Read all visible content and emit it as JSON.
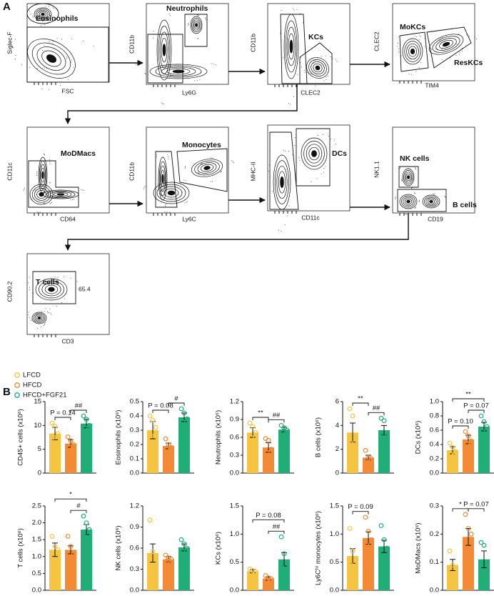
{
  "panel_a": {
    "label": "A",
    "plots": [
      {
        "x_label": "FSC",
        "y_label": "Siglec-F",
        "gates": [
          "Eosinophils"
        ]
      },
      {
        "x_label": "Ly6G",
        "y_label": "CD11b",
        "gates": [
          "Neutrophils"
        ]
      },
      {
        "x_label": "CLEC2",
        "y_label": "CD11b",
        "gates": [
          "KCs"
        ]
      },
      {
        "x_label": "TIM4",
        "y_label": "CLEC2",
        "gates": [
          "MoKCs",
          "ResKCs"
        ]
      },
      {
        "x_label": "CD64",
        "y_label": "CD11c",
        "gates": [
          "MoDMacs"
        ]
      },
      {
        "x_label": "Ly6C",
        "y_label": "CD11b",
        "gates": [
          "Monocytes"
        ]
      },
      {
        "x_label": "CD11c",
        "y_label": "MHC-II",
        "gates": [
          "DCs"
        ]
      },
      {
        "x_label": "CD19",
        "y_label": "NK1.1",
        "gates": [
          "NK cells",
          "B cells"
        ]
      },
      {
        "x_label": "CD3",
        "y_label": "CD90.2",
        "gates": [
          "T cells",
          "65.4"
        ]
      }
    ]
  },
  "panel_b": {
    "label": "B"
  },
  "chart_data": [
    {
      "type": "bar",
      "y_label": "CD45+ cells (x10⁶)",
      "ylim": [
        0,
        15
      ],
      "yticks": [
        0,
        5,
        10,
        15
      ],
      "series": [
        {
          "name": "LFCD",
          "color": "#f5c542",
          "values": [
            8.3
          ],
          "errors": [
            1.3
          ],
          "points": [
            [
              10.5,
              9.8,
              8.3,
              7.5,
              5.3
            ]
          ]
        },
        {
          "name": "HFCD",
          "color": "#f28a36",
          "values": [
            6.2
          ],
          "errors": [
            0.8
          ],
          "points": [
            [
              7.6,
              6.8,
              6.0,
              5.5,
              5.0
            ]
          ]
        },
        {
          "name": "HFCD+FGF21",
          "color": "#1fae78",
          "values": [
            10.4
          ],
          "errors": [
            0.9
          ],
          "points": [
            [
              12.0,
              11.3,
              10.0,
              9.5,
              9.0
            ]
          ]
        }
      ],
      "annotations": [
        {
          "text": "P = 0.14",
          "between": [
            0,
            1
          ]
        },
        {
          "text": "##",
          "between": [
            1,
            2
          ]
        }
      ]
    },
    {
      "type": "bar",
      "y_label": "Eosinophils (x10⁶)",
      "ylim": [
        0,
        0.5
      ],
      "yticks": [
        {
          "value": 0,
          "label": "0.0"
        },
        0.1,
        0.2,
        0.3,
        0.4,
        0.5
      ],
      "series": [
        {
          "color": "#f5c542",
          "values": [
            0.3
          ],
          "errors": [
            0.06
          ],
          "points": [
            [
              0.4,
              0.37,
              0.32,
              0.26,
              0.1
            ]
          ]
        },
        {
          "color": "#f28a36",
          "values": [
            0.19
          ],
          "errors": [
            0.02
          ],
          "points": [
            [
              0.24,
              0.2,
              0.18,
              0.17,
              0.16
            ]
          ]
        },
        {
          "color": "#1fae78",
          "values": [
            0.39
          ],
          "errors": [
            0.03
          ],
          "points": [
            [
              0.45,
              0.42,
              0.38,
              0.36,
              0.34
            ]
          ]
        }
      ],
      "annotations": [
        {
          "text": "P = 0.08",
          "between": [
            0,
            1
          ]
        },
        {
          "text": "#",
          "between": [
            1,
            2
          ]
        }
      ]
    },
    {
      "type": "bar",
      "y_label": "Neutrophils (x10⁶)",
      "ylim": [
        0,
        1.2
      ],
      "yticks": [
        {
          "value": 0,
          "label": "0.0"
        },
        0.3,
        0.6,
        0.9,
        1.2
      ],
      "series": [
        {
          "color": "#f5c542",
          "values": [
            0.68
          ],
          "errors": [
            0.08
          ],
          "points": [
            [
              0.84,
              0.78,
              0.68,
              0.6,
              0.5
            ]
          ]
        },
        {
          "color": "#f28a36",
          "values": [
            0.43
          ],
          "errors": [
            0.08
          ],
          "points": [
            [
              0.58,
              0.55,
              0.4,
              0.35,
              0.25
            ]
          ]
        },
        {
          "color": "#1fae78",
          "values": [
            0.73
          ],
          "errors": [
            0.04
          ],
          "points": [
            [
              0.8,
              0.76,
              0.72,
              0.7,
              0.66
            ]
          ]
        }
      ],
      "annotations": [
        {
          "text": "**",
          "between": [
            0,
            1
          ]
        },
        {
          "text": "##",
          "between": [
            1,
            2
          ]
        }
      ]
    },
    {
      "type": "bar",
      "y_label": "B cells (x10⁶)",
      "ylim": [
        0,
        6
      ],
      "yticks": [
        0,
        2,
        4,
        6
      ],
      "series": [
        {
          "color": "#f5c542",
          "values": [
            3.4
          ],
          "errors": [
            0.8
          ],
          "points": [
            [
              5.4,
              4.8,
              3.0,
              2.5,
              1.4
            ]
          ]
        },
        {
          "color": "#f28a36",
          "values": [
            1.3
          ],
          "errors": [
            0.2
          ],
          "points": [
            [
              1.9,
              1.3,
              1.2,
              0.9
            ]
          ]
        },
        {
          "color": "#1fae78",
          "values": [
            3.6
          ],
          "errors": [
            0.4
          ],
          "points": [
            [
              4.6,
              4.4,
              3.3,
              3.0,
              2.8
            ]
          ]
        }
      ],
      "annotations": [
        {
          "text": "**",
          "between": [
            0,
            1
          ]
        },
        {
          "text": "##",
          "between": [
            1,
            2
          ]
        }
      ]
    },
    {
      "type": "bar",
      "y_label": "DCs (x10⁶)",
      "ylim": [
        0,
        1.0
      ],
      "yticks": [
        {
          "value": 0,
          "label": "0.0"
        },
        0.2,
        0.4,
        0.6,
        0.8,
        {
          "value": 1.0,
          "label": "1.0"
        }
      ],
      "series": [
        {
          "color": "#f5c542",
          "values": [
            0.32
          ],
          "errors": [
            0.05
          ],
          "points": [
            [
              0.42,
              0.36,
              0.3,
              0.26,
              0.25
            ]
          ]
        },
        {
          "color": "#f28a36",
          "values": [
            0.47
          ],
          "errors": [
            0.06
          ],
          "points": [
            [
              0.58,
              0.52,
              0.45,
              0.42,
              0.38
            ]
          ]
        },
        {
          "color": "#1fae78",
          "values": [
            0.65
          ],
          "errors": [
            0.06
          ],
          "points": [
            [
              0.8,
              0.72,
              0.65,
              0.58,
              0.52
            ]
          ]
        }
      ],
      "annotations": [
        {
          "text": "P = 0.10",
          "between": [
            0,
            1
          ]
        },
        {
          "text": "P = 0.07",
          "between": [
            1,
            2
          ]
        },
        {
          "text": "**",
          "between": [
            0,
            2
          ]
        }
      ]
    },
    {
      "type": "bar",
      "y_label": "T cells (x10⁶)",
      "ylim": [
        0,
        2.5
      ],
      "yticks": [
        {
          "value": 0,
          "label": "0.0"
        },
        0.5,
        {
          "value": 1,
          "label": "1.0"
        },
        1.5,
        {
          "value": 2,
          "label": "2.0"
        },
        2.5
      ],
      "series": [
        {
          "color": "#f5c542",
          "values": [
            1.2
          ],
          "errors": [
            0.2
          ],
          "points": [
            [
              1.6,
              1.3,
              1.2,
              0.9,
              0.8
            ]
          ]
        },
        {
          "color": "#f28a36",
          "values": [
            1.2
          ],
          "errors": [
            0.12
          ],
          "points": [
            [
              1.6,
              1.3,
              1.1,
              1.0,
              1.0
            ]
          ]
        },
        {
          "color": "#1fae78",
          "values": [
            1.8
          ],
          "errors": [
            0.15
          ],
          "points": [
            [
              2.2,
              2.0,
              1.8,
              1.6,
              1.5
            ]
          ]
        }
      ],
      "annotations": [
        {
          "text": "#",
          "between": [
            1,
            2
          ]
        },
        {
          "text": "*",
          "between": [
            0,
            2
          ]
        }
      ]
    },
    {
      "type": "bar",
      "y_label": "NK cells (x10⁶)",
      "ylim": [
        0,
        1.2
      ],
      "yticks": [
        {
          "value": 0,
          "label": "0.0"
        },
        0.3,
        0.6,
        0.9,
        1.2
      ],
      "series": [
        {
          "color": "#f5c542",
          "values": [
            0.53
          ],
          "errors": [
            0.13
          ],
          "points": [
            [
              1.0,
              0.55,
              0.45,
              0.35,
              0.3
            ]
          ]
        },
        {
          "color": "#f28a36",
          "values": [
            0.44
          ],
          "errors": [
            0.04
          ],
          "points": [
            [
              0.5,
              0.46,
              0.44,
              0.42,
              0.38
            ]
          ]
        },
        {
          "color": "#1fae78",
          "values": [
            0.61
          ],
          "errors": [
            0.05
          ],
          "points": [
            [
              0.72,
              0.66,
              0.6,
              0.56,
              0.5
            ]
          ]
        }
      ],
      "annotations": []
    },
    {
      "type": "bar",
      "y_label": "KCs (x10⁶)",
      "ylim": [
        0,
        1.5
      ],
      "yticks": [
        {
          "value": 0,
          "label": "0.0"
        },
        0.5,
        {
          "value": 1,
          "label": "1.0"
        },
        1.5
      ],
      "series": [
        {
          "color": "#f5c542",
          "values": [
            0.34
          ],
          "errors": [
            0.03
          ],
          "points": [
            [
              0.38,
              0.35,
              0.33,
              0.3
            ]
          ]
        },
        {
          "color": "#f28a36",
          "values": [
            0.21
          ],
          "errors": [
            0.03
          ],
          "points": [
            [
              0.26,
              0.22,
              0.2,
              0.18,
              0.18
            ]
          ]
        },
        {
          "color": "#1fae78",
          "values": [
            0.55
          ],
          "errors": [
            0.12
          ],
          "points": [
            [
              0.95,
              0.65,
              0.5,
              0.4,
              0.3
            ]
          ]
        }
      ],
      "annotations": [
        {
          "text": "##",
          "between": [
            1,
            2
          ]
        },
        {
          "text": "P = 0.08",
          "between": [
            0,
            2
          ]
        }
      ]
    },
    {
      "type": "bar",
      "y_label": "Ly6Cʰⁱ monocytes (x10⁶)",
      "ylim": [
        0,
        1.5
      ],
      "yticks": [
        {
          "value": 0,
          "label": "0.0"
        },
        0.5,
        {
          "value": 1,
          "label": "1.0"
        },
        1.5
      ],
      "series": [
        {
          "color": "#f5c542",
          "values": [
            0.61
          ],
          "errors": [
            0.13
          ],
          "points": [
            [
              1.1,
              0.7,
              0.55,
              0.45,
              0.3
            ]
          ]
        },
        {
          "color": "#f28a36",
          "values": [
            0.93
          ],
          "errors": [
            0.11
          ],
          "points": [
            [
              1.3,
              1.05,
              0.9,
              0.8,
              0.6
            ]
          ]
        },
        {
          "color": "#1fae78",
          "values": [
            0.78
          ],
          "errors": [
            0.11
          ],
          "points": [
            [
              1.15,
              0.9,
              0.75,
              0.6,
              0.5
            ]
          ]
        }
      ],
      "annotations": [
        {
          "text": "P = 0.09",
          "between": [
            0,
            1
          ]
        }
      ]
    },
    {
      "type": "bar",
      "y_label": "MoDMacs (x10⁶)",
      "ylim": [
        0,
        0.3
      ],
      "yticks": [
        {
          "value": 0,
          "label": "0.0"
        },
        0.1,
        0.2,
        0.3
      ],
      "series": [
        {
          "color": "#f5c542",
          "values": [
            0.09
          ],
          "errors": [
            0.02
          ],
          "points": [
            [
              0.14,
              0.09,
              0.05
            ]
          ]
        },
        {
          "color": "#f28a36",
          "values": [
            0.19
          ],
          "errors": [
            0.03
          ],
          "points": [
            [
              0.27,
              0.22,
              0.2,
              0.15,
              0.14
            ]
          ]
        },
        {
          "color": "#1fae78",
          "values": [
            0.11
          ],
          "errors": [
            0.03
          ],
          "points": [
            [
              0.17,
              0.16,
              0.1,
              0.05
            ]
          ]
        }
      ],
      "annotations": [
        {
          "text": "*",
          "between": [
            0,
            1
          ]
        },
        {
          "text": "P = 0.07",
          "between": [
            1,
            2
          ]
        }
      ]
    }
  ]
}
